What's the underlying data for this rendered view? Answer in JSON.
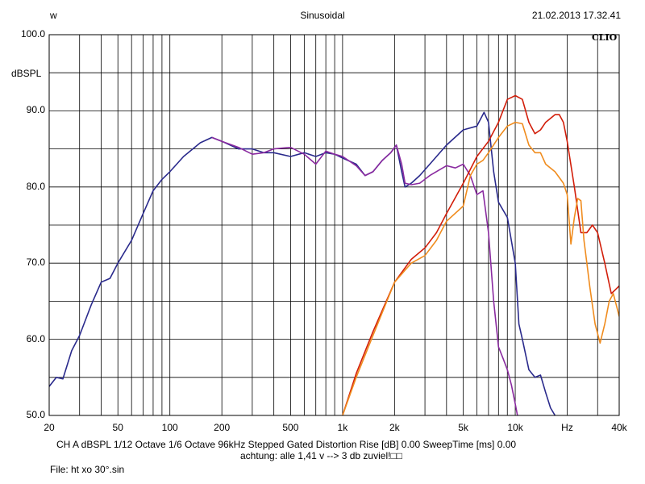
{
  "header": {
    "left": "w",
    "center": "Sinusoidal",
    "right": "21.02.2013 17.32.41"
  },
  "logo": "CLIO",
  "colors": {
    "grid": "#000000",
    "background": "#ffffff",
    "blue": "#2a2a8c",
    "purple": "#8a2aa0",
    "red": "#d21e0a",
    "orange": "#f08c1e"
  },
  "footer": {
    "line1": "CH A   dBSPL    1/12 Octave    1/6 Octave   96kHz    Stepped     Gated    Distortion Rise [dB] 0.00     SweepTime [ms] 0.00",
    "line2": "achtung: alle 1,41 v --> 3 db zuviel!□□",
    "file": "File: ht xo 30°.sin"
  },
  "chart_data": {
    "type": "line",
    "ylabel": "dBSPL",
    "xlabel": "Hz",
    "xscale": "log",
    "xlim": [
      20,
      40000
    ],
    "ylim": [
      50,
      100
    ],
    "grid": true,
    "yticks": [
      {
        "v": 100,
        "label": "100.0"
      },
      {
        "v": 90,
        "label": "90.0"
      },
      {
        "v": 80,
        "label": "80.0"
      },
      {
        "v": 70,
        "label": "70.0"
      },
      {
        "v": 60,
        "label": "60.0"
      },
      {
        "v": 50,
        "label": "50.0"
      }
    ],
    "xticks": [
      {
        "v": 20,
        "label": "20"
      },
      {
        "v": 50,
        "label": "50"
      },
      {
        "v": 100,
        "label": "100"
      },
      {
        "v": 200,
        "label": "200"
      },
      {
        "v": 500,
        "label": "500"
      },
      {
        "v": 1000,
        "label": "1k"
      },
      {
        "v": 2000,
        "label": "2k"
      },
      {
        "v": 5000,
        "label": "5k"
      },
      {
        "v": 10000,
        "label": "10k"
      },
      {
        "v": 20000,
        "label": "Hz"
      },
      {
        "v": 40000,
        "label": "40k"
      }
    ],
    "series": [
      {
        "color": "#2a2a8c",
        "points": [
          [
            20,
            53.8
          ],
          [
            22,
            55
          ],
          [
            24,
            54.8
          ],
          [
            27,
            58.5
          ],
          [
            30,
            60.5
          ],
          [
            35,
            64.5
          ],
          [
            40,
            67.5
          ],
          [
            45,
            68
          ],
          [
            50,
            70
          ],
          [
            60,
            73
          ],
          [
            70,
            76.5
          ],
          [
            80,
            79.5
          ],
          [
            90,
            81
          ],
          [
            100,
            82
          ],
          [
            120,
            84
          ],
          [
            150,
            85.8
          ],
          [
            175,
            86.5
          ],
          [
            200,
            86
          ],
          [
            250,
            85
          ],
          [
            300,
            85
          ],
          [
            350,
            84.5
          ],
          [
            400,
            84.5
          ],
          [
            500,
            84
          ],
          [
            600,
            84.5
          ],
          [
            700,
            84
          ],
          [
            800,
            84.5
          ],
          [
            900,
            84.3
          ],
          [
            1000,
            83.8
          ],
          [
            1200,
            83
          ],
          [
            1350,
            81.5
          ],
          [
            1500,
            82
          ],
          [
            1700,
            83.5
          ],
          [
            1900,
            84.5
          ],
          [
            2050,
            85.5
          ],
          [
            2200,
            82
          ],
          [
            2300,
            80
          ],
          [
            2500,
            80.5
          ],
          [
            2800,
            81.5
          ],
          [
            3200,
            83
          ],
          [
            4000,
            85.5
          ],
          [
            5000,
            87.5
          ],
          [
            6000,
            88
          ],
          [
            6600,
            89.8
          ],
          [
            7000,
            88.5
          ],
          [
            7500,
            82
          ],
          [
            8000,
            78
          ],
          [
            9000,
            76
          ],
          [
            10000,
            70
          ],
          [
            10500,
            62
          ],
          [
            11000,
            60
          ],
          [
            12000,
            56
          ],
          [
            13000,
            55
          ],
          [
            14000,
            55.3
          ],
          [
            15000,
            53
          ],
          [
            16000,
            51
          ],
          [
            17000,
            50
          ]
        ]
      },
      {
        "color": "#8a2aa0",
        "points": [
          [
            175,
            86.5
          ],
          [
            200,
            86
          ],
          [
            250,
            85.2
          ],
          [
            300,
            84.3
          ],
          [
            350,
            84.5
          ],
          [
            400,
            85
          ],
          [
            500,
            85.2
          ],
          [
            600,
            84.3
          ],
          [
            700,
            83
          ],
          [
            800,
            84.7
          ],
          [
            900,
            84.3
          ],
          [
            1000,
            84
          ],
          [
            1200,
            82.8
          ],
          [
            1350,
            81.5
          ],
          [
            1500,
            82
          ],
          [
            1700,
            83.5
          ],
          [
            1900,
            84.5
          ],
          [
            2050,
            85.5
          ],
          [
            2200,
            83
          ],
          [
            2300,
            80.5
          ],
          [
            2500,
            80.3
          ],
          [
            2800,
            80.5
          ],
          [
            3200,
            81.5
          ],
          [
            4000,
            82.8
          ],
          [
            4500,
            82.5
          ],
          [
            5000,
            83
          ],
          [
            5500,
            81.5
          ],
          [
            6000,
            79
          ],
          [
            6500,
            79.5
          ],
          [
            7000,
            74
          ],
          [
            7500,
            65
          ],
          [
            8000,
            59
          ],
          [
            8500,
            57.5
          ],
          [
            9000,
            56
          ],
          [
            9500,
            54
          ],
          [
            10000,
            51.5
          ],
          [
            10300,
            50
          ]
        ]
      },
      {
        "color": "#d21e0a",
        "points": [
          [
            1000,
            50
          ],
          [
            1200,
            55.5
          ],
          [
            1500,
            61
          ],
          [
            2000,
            67.5
          ],
          [
            2500,
            70.5
          ],
          [
            3000,
            72
          ],
          [
            3500,
            74
          ],
          [
            4000,
            76.5
          ],
          [
            5000,
            80.5
          ],
          [
            6000,
            84
          ],
          [
            7000,
            86
          ],
          [
            8000,
            88.5
          ],
          [
            9000,
            91.5
          ],
          [
            10000,
            92
          ],
          [
            11000,
            91.5
          ],
          [
            12000,
            88.5
          ],
          [
            13000,
            87
          ],
          [
            14000,
            87.5
          ],
          [
            15000,
            88.5
          ],
          [
            17000,
            89.5
          ],
          [
            18000,
            89.5
          ],
          [
            19000,
            88.5
          ],
          [
            20000,
            86
          ],
          [
            22000,
            80
          ],
          [
            24000,
            74
          ],
          [
            26000,
            74
          ],
          [
            28000,
            75
          ],
          [
            30000,
            74
          ],
          [
            33000,
            70
          ],
          [
            36000,
            66
          ],
          [
            38000,
            66.5
          ],
          [
            40000,
            67
          ]
        ]
      },
      {
        "color": "#f08c1e",
        "points": [
          [
            1000,
            50
          ],
          [
            1200,
            55
          ],
          [
            1500,
            60.5
          ],
          [
            2000,
            67.5
          ],
          [
            2500,
            70
          ],
          [
            3000,
            71
          ],
          [
            3500,
            73
          ],
          [
            4000,
            75.5
          ],
          [
            5000,
            77.5
          ],
          [
            5500,
            81.5
          ],
          [
            6000,
            83
          ],
          [
            6500,
            83.5
          ],
          [
            7000,
            84.5
          ],
          [
            8000,
            86.5
          ],
          [
            9000,
            88
          ],
          [
            10000,
            88.5
          ],
          [
            11000,
            88.3
          ],
          [
            12000,
            85.5
          ],
          [
            13000,
            84.5
          ],
          [
            14000,
            84.5
          ],
          [
            15000,
            83
          ],
          [
            17000,
            82
          ],
          [
            19000,
            80.5
          ],
          [
            20000,
            79
          ],
          [
            21000,
            72.5
          ],
          [
            22000,
            76
          ],
          [
            23000,
            78.5
          ],
          [
            24000,
            78.2
          ],
          [
            25000,
            73
          ],
          [
            26000,
            70
          ],
          [
            27000,
            67
          ],
          [
            29000,
            62
          ],
          [
            31000,
            59.5
          ],
          [
            33000,
            62
          ],
          [
            35000,
            65
          ],
          [
            37000,
            66
          ],
          [
            39000,
            64
          ],
          [
            40000,
            63
          ]
        ]
      }
    ]
  }
}
